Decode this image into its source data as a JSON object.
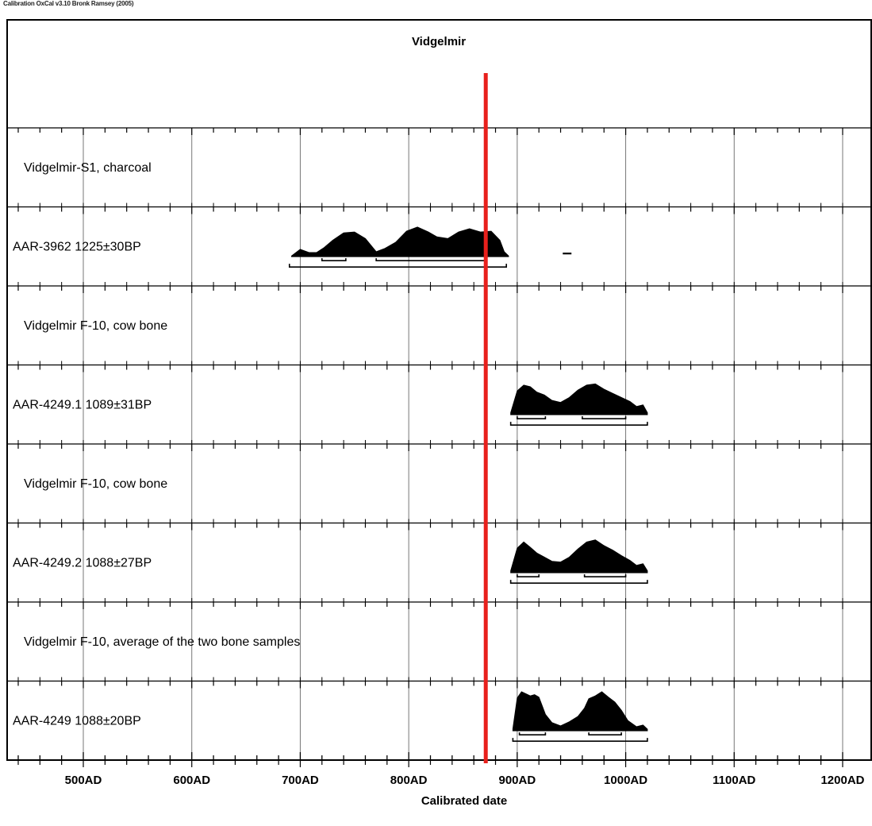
{
  "program_header": "Calibration OxCal v3.10 Bronk Ramsey (2005)",
  "chart_data": {
    "type": "area",
    "title": "Vidgelmir",
    "xlabel": "Calibrated date",
    "ylabel": "",
    "xlim": [
      440,
      1210
    ],
    "x_ticks": [
      {
        "value": 500,
        "label": "500AD"
      },
      {
        "value": 600,
        "label": "600AD"
      },
      {
        "value": 700,
        "label": "700AD"
      },
      {
        "value": 800,
        "label": "800AD"
      },
      {
        "value": 900,
        "label": "900AD"
      },
      {
        "value": 1000,
        "label": "1000AD"
      },
      {
        "value": 1100,
        "label": "1100AD"
      },
      {
        "value": 1200,
        "label": "1200AD"
      }
    ],
    "grid": true,
    "reference_line": {
      "x": 871,
      "color": "#e8201c"
    },
    "rows": [
      {
        "label": "Vidgelmir-S1, charcoal",
        "kind": "header"
      },
      {
        "label": "AAR-3962  1225±30BP",
        "kind": "date",
        "distribution": {
          "x": [
            692,
            700,
            708,
            715,
            722,
            730,
            740,
            750,
            760,
            770,
            778,
            788,
            798,
            808,
            818,
            826,
            836,
            846,
            856,
            866,
            876,
            884,
            888,
            892
          ],
          "y": [
            0.02,
            0.18,
            0.1,
            0.1,
            0.22,
            0.4,
            0.58,
            0.6,
            0.44,
            0.12,
            0.2,
            0.35,
            0.62,
            0.72,
            0.6,
            0.48,
            0.44,
            0.6,
            0.68,
            0.6,
            0.62,
            0.4,
            0.12,
            0.02
          ]
        },
        "range_68": [
          [
            720,
            742
          ],
          [
            770,
            872
          ]
        ],
        "range_95": [
          [
            690,
            890
          ]
        ],
        "extra_segment": [
          [
            942,
            950
          ]
        ]
      },
      {
        "label": "Vidgelmir F-10, cow bone",
        "kind": "header"
      },
      {
        "label": "AAR-4249.1  1089±31BP",
        "kind": "date",
        "distribution": {
          "x": [
            894,
            900,
            906,
            912,
            918,
            925,
            932,
            940,
            948,
            956,
            964,
            972,
            980,
            988,
            996,
            1004,
            1010,
            1016,
            1020
          ],
          "y": [
            0.05,
            0.58,
            0.72,
            0.68,
            0.55,
            0.48,
            0.35,
            0.3,
            0.42,
            0.6,
            0.72,
            0.75,
            0.62,
            0.52,
            0.42,
            0.32,
            0.2,
            0.24,
            0.05
          ]
        },
        "range_68": [
          [
            900,
            926
          ],
          [
            960,
            1000
          ]
        ],
        "range_95": [
          [
            894,
            1020
          ]
        ]
      },
      {
        "label": "Vidgelmir F-10, cow bone",
        "kind": "header"
      },
      {
        "label": "AAR-4249.2  1088±27BP",
        "kind": "date",
        "distribution": {
          "x": [
            894,
            900,
            906,
            912,
            918,
            925,
            932,
            940,
            948,
            956,
            964,
            972,
            980,
            988,
            996,
            1004,
            1010,
            1016,
            1020
          ],
          "y": [
            0.05,
            0.6,
            0.75,
            0.62,
            0.48,
            0.38,
            0.28,
            0.26,
            0.38,
            0.58,
            0.75,
            0.8,
            0.66,
            0.55,
            0.42,
            0.3,
            0.18,
            0.22,
            0.05
          ]
        },
        "range_68": [
          [
            900,
            920
          ],
          [
            962,
            1000
          ]
        ],
        "range_95": [
          [
            894,
            1020
          ]
        ]
      },
      {
        "label": "Vidgelmir F-10, average of the two bone samples",
        "kind": "header"
      },
      {
        "label": "AAR-4249  1088±20BP",
        "kind": "date",
        "distribution": {
          "x": [
            896,
            900,
            904,
            908,
            912,
            916,
            920,
            926,
            932,
            940,
            948,
            956,
            962,
            966,
            972,
            978,
            984,
            990,
            996,
            1002,
            1010,
            1016,
            1020
          ],
          "y": [
            0.05,
            0.8,
            0.95,
            0.9,
            0.85,
            0.88,
            0.82,
            0.4,
            0.2,
            0.12,
            0.22,
            0.35,
            0.55,
            0.78,
            0.85,
            0.95,
            0.82,
            0.7,
            0.5,
            0.25,
            0.1,
            0.14,
            0.04
          ]
        },
        "range_68": [
          [
            902,
            926
          ],
          [
            966,
            996
          ]
        ],
        "range_95": [
          [
            896,
            1020
          ]
        ]
      }
    ]
  }
}
